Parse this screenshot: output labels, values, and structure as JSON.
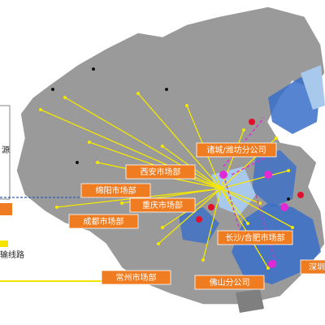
{
  "labels": [
    "诸城/潍坊分公司",
    "西安市场部",
    "绵阳市场部",
    "重庆市场部",
    "成都市场部",
    "长沙/合肥市场部",
    "深圳",
    "常州市场部",
    "佛山分公司"
  ],
  "legend": {
    "side_text": "源",
    "route_text": "输线路"
  }
}
